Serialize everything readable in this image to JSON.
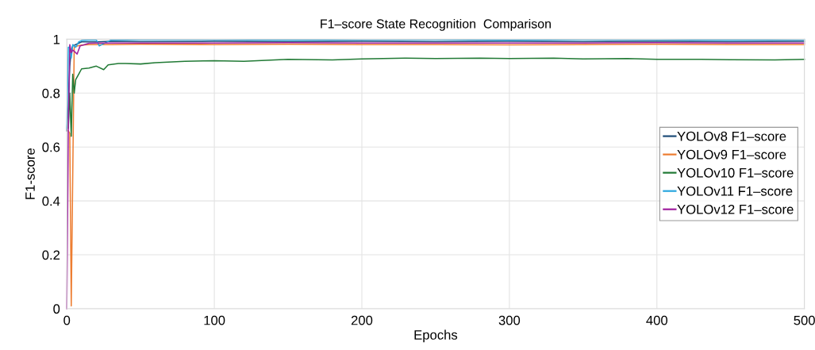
{
  "chart_data": {
    "type": "line",
    "title": "F1–score State Recognition  Comparison",
    "xlabel": "Epochs",
    "ylabel": "F1-score",
    "xlim": [
      0,
      500
    ],
    "ylim": [
      0,
      1
    ],
    "xticks": [
      0,
      100,
      200,
      300,
      400,
      500
    ],
    "yticks": [
      0,
      {
        "value": 0.2,
        "label": "0.2"
      },
      {
        "value": 0.4,
        "label": "0.4"
      },
      {
        "value": 0.6,
        "label": "0.6"
      },
      {
        "value": 0.8,
        "label": "0.8"
      },
      1
    ],
    "grid": true,
    "legend": "right",
    "marker": "none",
    "line_style": "solid",
    "series": [
      {
        "name": "YOLOv8 F1–score",
        "color": "#1f4e79",
        "x": [
          0,
          1,
          2,
          3,
          4,
          6,
          8,
          10,
          15,
          20,
          30,
          50,
          100,
          150,
          200,
          250,
          300,
          350,
          400,
          450,
          500
        ],
        "values": [
          0.66,
          0.75,
          0.9,
          0.96,
          0.975,
          0.98,
          0.985,
          0.99,
          0.99,
          0.99,
          0.992,
          0.991,
          0.992,
          0.991,
          0.992,
          0.991,
          0.992,
          0.991,
          0.992,
          0.991,
          0.992
        ]
      },
      {
        "name": "YOLOv9 F1–score",
        "color": "#ed7d31",
        "x": [
          1,
          2,
          3,
          5,
          7,
          10,
          15,
          20,
          30,
          50,
          100,
          150,
          200,
          250,
          300,
          350,
          400,
          450,
          500
        ],
        "values": [
          0.66,
          0.65,
          0.01,
          0.97,
          0.975,
          0.978,
          0.98,
          0.98,
          0.98,
          0.981,
          0.98,
          0.981,
          0.98,
          0.98,
          0.979,
          0.98,
          0.981,
          0.98,
          0.98
        ]
      },
      {
        "name": "YOLOv10 F1–score",
        "color": "#217a35",
        "x": [
          1,
          2,
          3,
          4,
          5,
          6,
          8,
          10,
          15,
          20,
          25,
          28,
          35,
          40,
          50,
          60,
          80,
          100,
          120,
          150,
          180,
          200,
          230,
          250,
          280,
          300,
          330,
          350,
          380,
          400,
          430,
          450,
          480,
          500
        ],
        "values": [
          0.67,
          0.8,
          0.64,
          0.87,
          0.8,
          0.85,
          0.87,
          0.89,
          0.893,
          0.9,
          0.887,
          0.905,
          0.91,
          0.91,
          0.908,
          0.913,
          0.918,
          0.92,
          0.918,
          0.925,
          0.923,
          0.927,
          0.93,
          0.928,
          0.93,
          0.928,
          0.93,
          0.927,
          0.928,
          0.925,
          0.925,
          0.924,
          0.923,
          0.925
        ]
      },
      {
        "name": "YOLOv11 F1–score",
        "color": "#2ba7df",
        "x": [
          0,
          1,
          2,
          3,
          4,
          6,
          8,
          10,
          15,
          20,
          22,
          30,
          50,
          100,
          150,
          200,
          250,
          300,
          350,
          400,
          450,
          500
        ],
        "values": [
          0.67,
          0.97,
          0.97,
          0.93,
          0.98,
          0.97,
          0.99,
          0.995,
          0.997,
          0.997,
          0.975,
          0.997,
          0.998,
          0.998,
          0.997,
          0.998,
          0.998,
          0.997,
          0.998,
          0.998,
          0.997,
          0.998
        ]
      },
      {
        "name": "YOLOv12 F1–score",
        "color": "#a0209f",
        "x": [
          0,
          1,
          2,
          3,
          4,
          5,
          7,
          9,
          12,
          15,
          20,
          30,
          50,
          100,
          150,
          200,
          250,
          300,
          350,
          400,
          450,
          500
        ],
        "values": [
          0.0,
          0.66,
          0.98,
          0.95,
          0.96,
          0.955,
          0.945,
          0.975,
          0.98,
          0.985,
          0.986,
          0.986,
          0.986,
          0.986,
          0.987,
          0.986,
          0.986,
          0.986,
          0.986,
          0.987,
          0.986,
          0.986
        ]
      }
    ]
  }
}
